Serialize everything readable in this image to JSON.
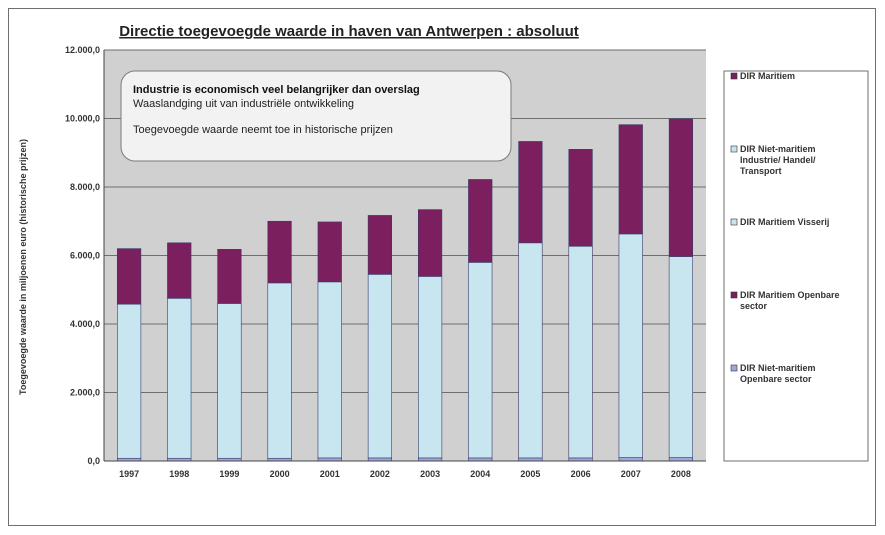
{
  "chart_data": {
    "type": "bar",
    "stacked": true,
    "title": "Directie toegevoegde waarde in haven van Antwerpen : absoluut",
    "ylabel": "Toegevoegde waarde in miljoenen euro (historische prijzen)",
    "xlabel": "",
    "ylim": [
      0,
      12000
    ],
    "y_ticks": [
      "0,0",
      "2.000,0",
      "4.000,0",
      "6.000,0",
      "8.000,0",
      "10.000,0",
      "12.000,0"
    ],
    "grid": true,
    "legend_placement": "right",
    "categories": [
      "1997",
      "1998",
      "1999",
      "2000",
      "2001",
      "2002",
      "2003",
      "2004",
      "2005",
      "2006",
      "2007",
      "2008"
    ],
    "series": [
      {
        "name": "DIR Niet-maritiem Openbare sector",
        "color": "#9fa8da",
        "values": [
          80,
          80,
          80,
          80,
          90,
          90,
          90,
          90,
          90,
          90,
          100,
          100
        ]
      },
      {
        "name": "DIR Maritiem Openbare sector",
        "color": "#7b1f5e",
        "values": [
          0,
          0,
          0,
          0,
          0,
          0,
          0,
          0,
          0,
          0,
          0,
          0
        ]
      },
      {
        "name": "DIR Maritiem Visserij",
        "color": "#c8e6f0",
        "values": [
          0,
          0,
          0,
          0,
          0,
          0,
          0,
          0,
          0,
          0,
          0,
          0
        ]
      },
      {
        "name": "DIR Niet-maritiem Industrie/ Handel/ Transport",
        "color": "#c8e6f0",
        "values": [
          4500,
          4670,
          4520,
          5120,
          5140,
          5360,
          5300,
          5710,
          6280,
          6180,
          6530,
          5870
        ]
      },
      {
        "name": "DIR Maritiem",
        "color": "#7b1f5e",
        "values": [
          1620,
          1620,
          1580,
          1800,
          1750,
          1720,
          1950,
          2420,
          2960,
          2830,
          3190,
          4020
        ]
      }
    ],
    "annotation": {
      "line1": "Industrie is economisch veel belangrijker dan overslag",
      "line2": "Waaslandging uit van industriële ontwikkeling",
      "line3": "Toegevoegde waarde neemt toe in historische prijzen"
    }
  },
  "legend": [
    {
      "label_lines": [
        "DIR Maritiem"
      ],
      "color": "#7b1f5e"
    },
    {
      "label_lines": [
        "DIR Niet-maritiem",
        "Industrie/ Handel/",
        "Transport"
      ],
      "color": "#c8e6f0"
    },
    {
      "label_lines": [
        "DIR Maritiem Visserij"
      ],
      "color": "#c8e6f0"
    },
    {
      "label_lines": [
        "DIR Maritiem Openbare",
        "sector"
      ],
      "color": "#7b1f5e"
    },
    {
      "label_lines": [
        "DIR Niet-maritiem",
        "Openbare sector"
      ],
      "color": "#9fa8da"
    }
  ],
  "colors": {
    "plot_bg": "#d0d0d0",
    "gridline": "#6e6e6e",
    "bar_stroke": "#3a3a6a"
  }
}
